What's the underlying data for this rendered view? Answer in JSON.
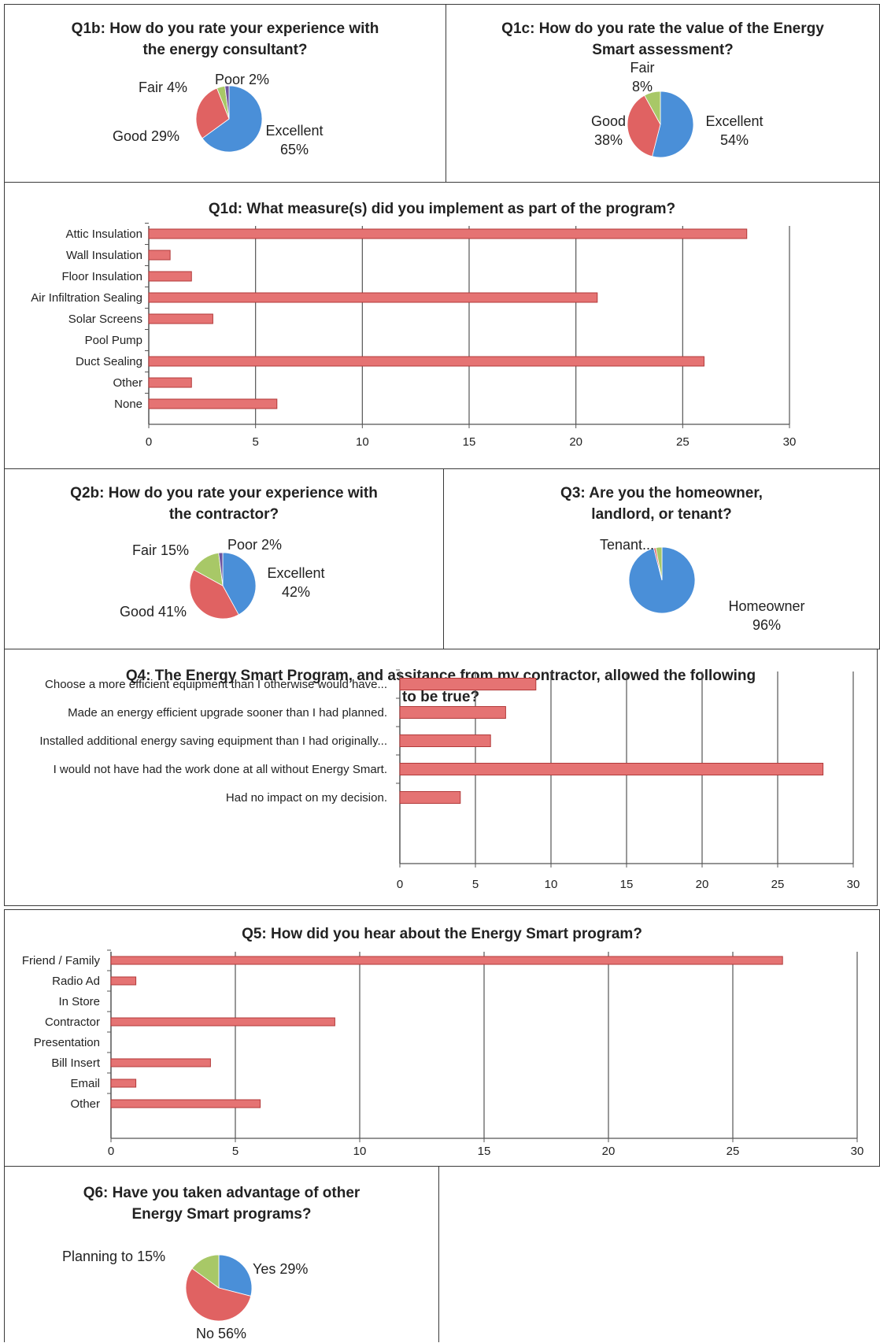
{
  "chart_data": [
    {
      "id": "q1b",
      "type": "pie",
      "title": "Q1b: How do you rate your experience with the energy consultant?",
      "slices": [
        {
          "label": "Excellent 65%",
          "value": 65,
          "color": "#4a8fd8"
        },
        {
          "label": "Good 29%",
          "value": 29,
          "color": "#e06262"
        },
        {
          "label": "Fair 4%",
          "value": 4,
          "color": "#a8c867"
        },
        {
          "label": "Poor 2%",
          "value": 2,
          "color": "#6e55a0"
        }
      ]
    },
    {
      "id": "q1c",
      "type": "pie",
      "title": "Q1c: How do you rate the value of the Energy Smart assessment?",
      "slices": [
        {
          "label": "Excellent 54%",
          "value": 54,
          "color": "#4a8fd8"
        },
        {
          "label": "Good 38%",
          "value": 38,
          "color": "#e06262"
        },
        {
          "label": "Fair 8%",
          "value": 8,
          "color": "#a8c867"
        }
      ]
    },
    {
      "id": "q1d",
      "type": "bar",
      "title": "Q1d: What measure(s) did you implement as part of the program?",
      "categories": [
        "Attic Insulation",
        "Wall Insulation",
        "Floor Insulation",
        "Air Infiltration Sealing",
        "Solar Screens",
        "Pool Pump",
        "Duct Sealing",
        "Other",
        "None"
      ],
      "values": [
        28,
        1,
        2,
        21,
        3,
        0,
        26,
        2,
        6
      ],
      "xlim": [
        0,
        30
      ],
      "xticks": [
        "0",
        "5",
        "10",
        "15",
        "20",
        "25",
        "30"
      ],
      "color": "#e57373"
    },
    {
      "id": "q2b",
      "type": "pie",
      "title": "Q2b: How do you rate your experience with the contractor?",
      "slices": [
        {
          "label": "Excellent 42%",
          "value": 42,
          "color": "#4a8fd8"
        },
        {
          "label": "Good 41%",
          "value": 41,
          "color": "#e06262"
        },
        {
          "label": "Fair 15%",
          "value": 15,
          "color": "#a8c867"
        },
        {
          "label": "Poor 2%",
          "value": 2,
          "color": "#6e55a0"
        }
      ]
    },
    {
      "id": "q3",
      "type": "pie",
      "title": "Q3: Are you the homeowner, landlord, or tenant?",
      "slices": [
        {
          "label": "Homeowner 96%",
          "value": 96,
          "color": "#4a8fd8"
        },
        {
          "label": "",
          "value": 1,
          "color": "#e06262"
        },
        {
          "label": "Tenant...",
          "value": 3,
          "color": "#a8c867"
        }
      ]
    },
    {
      "id": "q4",
      "type": "bar",
      "title": "Q4: The Energy Smart Program, and assitance from my contractor, allowed the following to be true?",
      "categories": [
        "Choose a more efficient equipment than I otherwise would have...",
        "Made an energy efficient upgrade sooner than I had planned.",
        "Installed additional energy saving equipment than I had originally...",
        "I would not have had the work done at all without Energy Smart.",
        "Had no impact on my decision."
      ],
      "values": [
        9,
        7,
        6,
        28,
        4
      ],
      "xlim": [
        0,
        30
      ],
      "xticks": [
        "0",
        "5",
        "10",
        "15",
        "20",
        "25",
        "30"
      ],
      "color": "#e57373"
    },
    {
      "id": "q5",
      "type": "bar",
      "title": "Q5: How did you hear about the Energy Smart program?",
      "categories": [
        "Friend / Family",
        "Radio Ad",
        "In Store",
        "Contractor",
        "Presentation",
        "Bill Insert",
        "Email",
        "Other"
      ],
      "values": [
        27,
        1,
        0,
        9,
        0,
        4,
        1,
        6
      ],
      "xlim": [
        0,
        30
      ],
      "xticks": [
        "0",
        "5",
        "10",
        "15",
        "20",
        "25",
        "30"
      ],
      "color": "#e57373"
    },
    {
      "id": "q6",
      "type": "pie",
      "title": "Q6: Have you taken advantage of other Energy Smart programs?",
      "slices": [
        {
          "label": "Yes 29%",
          "value": 29,
          "color": "#4a8fd8"
        },
        {
          "label": "No 56%",
          "value": 56,
          "color": "#e06262"
        },
        {
          "label": "Planning to 15%",
          "value": 15,
          "color": "#a8c867"
        }
      ]
    }
  ]
}
